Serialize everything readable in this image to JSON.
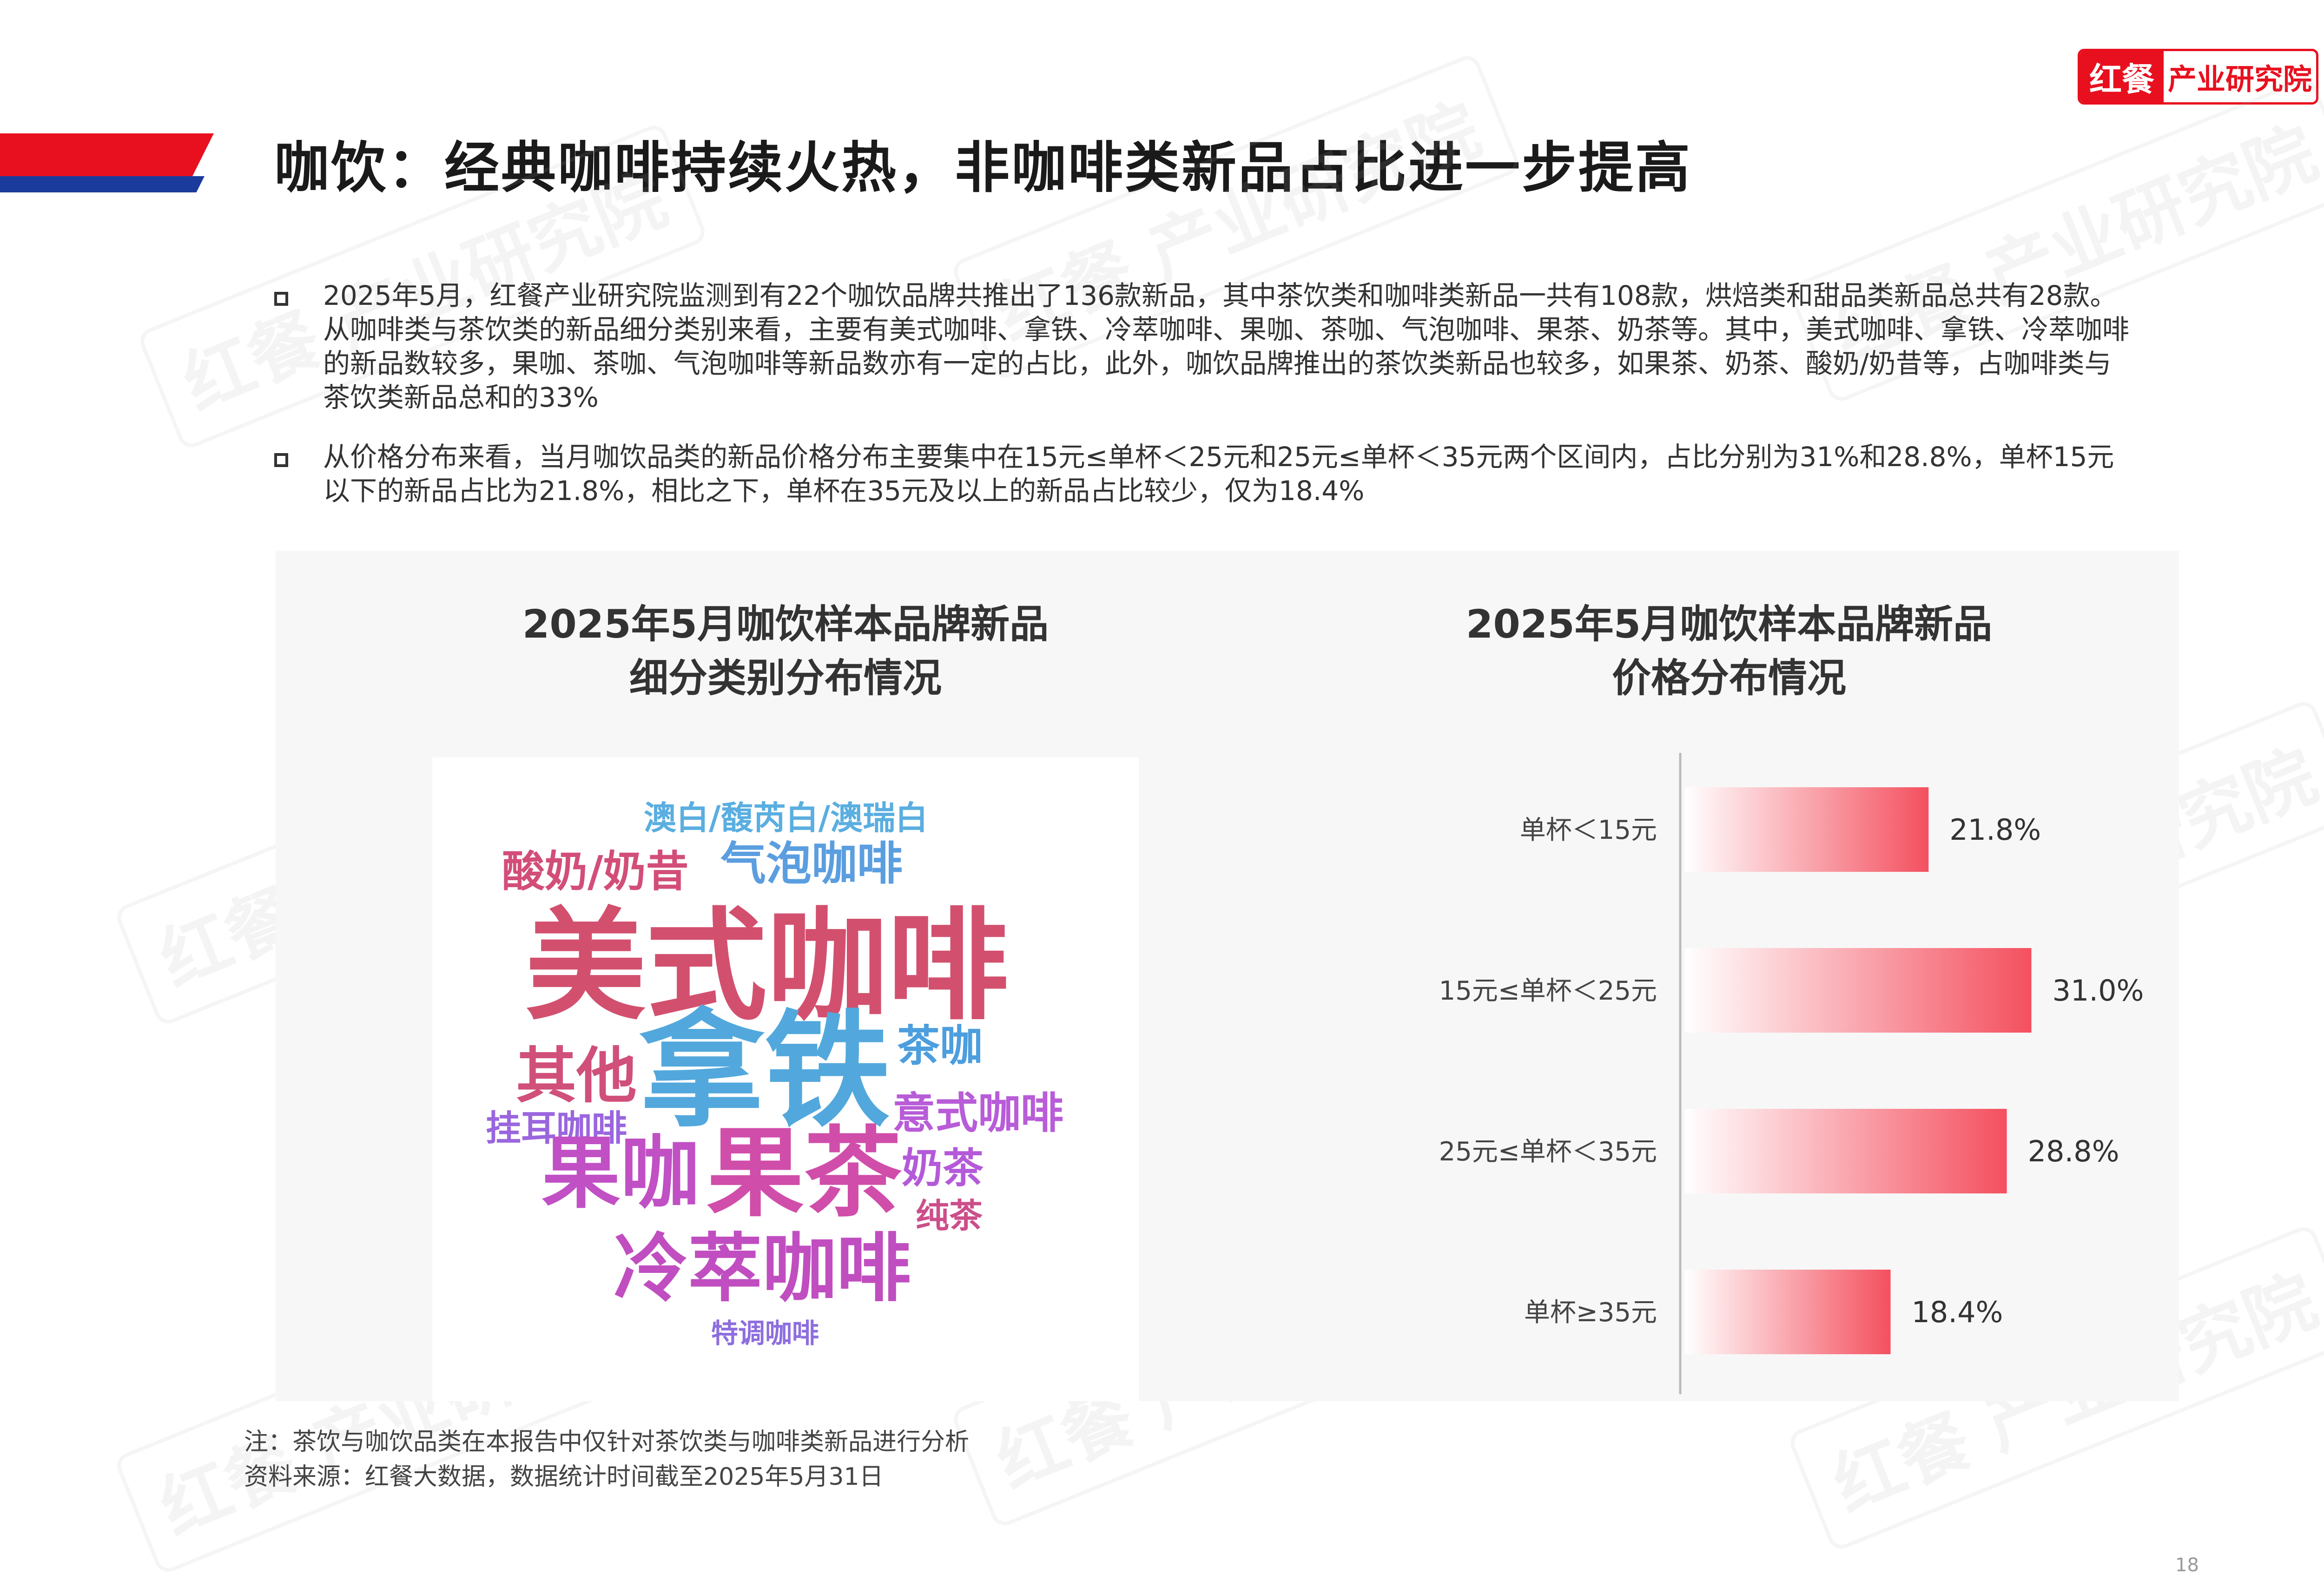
{
  "header": {
    "title": "咖饮：经典咖啡持续火热，非咖啡类新品占比进一步提高",
    "logo_mark": "红餐",
    "logo_text": "产业研究院"
  },
  "watermark": "红餐 产业研究院",
  "bullets": [
    "2025年5月，红餐产业研究院监测到有22个咖饮品牌共推出了136款新品，其中茶饮类和咖啡类新品一共有108款，烘焙类和甜品类新品总共有28款。从咖啡类与茶饮类的新品细分类别来看，主要有美式咖啡、拿铁、冷萃咖啡、果咖、茶咖、气泡咖啡、果茶、奶茶等。其中，美式咖啡、拿铁、冷萃咖啡的新品数较多，果咖、茶咖、气泡咖啡等新品数亦有一定的占比，此外，咖饮品牌推出的茶饮类新品也较多，如果茶、奶茶、酸奶/奶昔等，占咖啡类与茶饮类新品总和的33%",
    "从价格分布来看，当月咖饮品类的新品价格分布主要集中在15元≤单杯＜25元和25元≤单杯＜35元两个区间内，占比分别为31%和28.8%，单杯15元以下的新品占比为21.8%，相比之下，单杯在35元及以上的新品占比较少，仅为18.4%"
  ],
  "word_cloud": {
    "title_line1": "2025年5月咖饮样本品牌新品",
    "title_line2": "细分类别分布情况",
    "words": [
      {
        "text": "澳白/馥芮白/澳瑞白",
        "color": "#5aaee0"
      },
      {
        "text": "气泡咖啡",
        "color": "#5a9ee0"
      },
      {
        "text": "酸奶/奶昔",
        "color": "#d24e78"
      },
      {
        "text": "美式咖啡",
        "color": "#d2506e"
      },
      {
        "text": "拿铁",
        "color": "#52a8dc"
      },
      {
        "text": "茶咖",
        "color": "#4c9ede"
      },
      {
        "text": "其他",
        "color": "#d0507a"
      },
      {
        "text": "意式咖啡",
        "color": "#b85cd8"
      },
      {
        "text": "挂耳咖啡",
        "color": "#9a66de"
      },
      {
        "text": "果咖",
        "color": "#c050c4"
      },
      {
        "text": "果茶",
        "color": "#d04eaa"
      },
      {
        "text": "奶茶",
        "color": "#b45ad8"
      },
      {
        "text": "纯茶",
        "color": "#cc4e8a"
      },
      {
        "text": "冷萃咖啡",
        "color": "#c04ec0"
      },
      {
        "text": "特调咖啡",
        "color": "#8e6ede"
      }
    ]
  },
  "chart_data": {
    "type": "bar",
    "orientation": "horizontal",
    "title": "2025年5月咖饮样本品牌新品\n价格分布情况",
    "title_line1": "2025年5月咖饮样本品牌新品",
    "title_line2": "价格分布情况",
    "categories": [
      "单杯＜15元",
      "15元≤单杯＜25元",
      "25元≤单杯＜35元",
      "单杯≥35元"
    ],
    "values": [
      21.8,
      31.0,
      28.8,
      18.4
    ],
    "value_labels": [
      "21.8%",
      "31.0%",
      "28.8%",
      "18.4%"
    ],
    "unit": "%",
    "xlim": [
      0,
      42
    ],
    "bar_color": "#f4505f",
    "grid": false,
    "legend": "none"
  },
  "notes": {
    "note": "注：茶饮与咖饮品类在本报告中仅针对茶饮类与咖啡类新品进行分析",
    "source": "资料来源：红餐大数据，数据统计时间截至2025年5月31日"
  },
  "page_number": "18"
}
